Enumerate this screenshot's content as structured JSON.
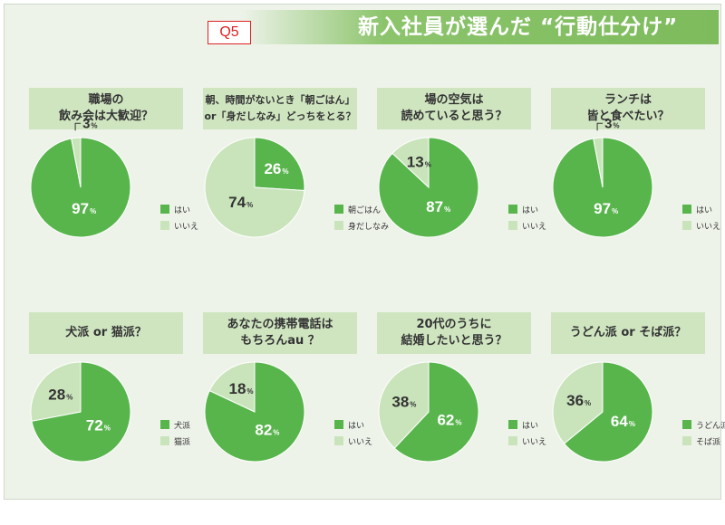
{
  "header": {
    "badge": "Q5",
    "title": "新入社員が選んだ “行動仕分け”"
  },
  "colors": {
    "main": "#58b54c",
    "light": "#c9e4bb",
    "band": "#8cc46c",
    "question_bg": "#cfe5c0"
  },
  "chart_data": [
    {
      "type": "pie",
      "title": "職場の\n飲み会は大歓迎？",
      "slices": [
        {
          "label": "はい",
          "value": 97
        },
        {
          "label": "いいえ",
          "value": 3
        }
      ]
    },
    {
      "type": "pie",
      "title": "朝、時間がないとき「朝ごはん」\nor「身だしなみ」どっちをとる？",
      "slices": [
        {
          "label": "朝ごはん",
          "value": 26
        },
        {
          "label": "身だしなみ",
          "value": 74
        }
      ]
    },
    {
      "type": "pie",
      "title": "場の空気は\n読めていると思う？",
      "slices": [
        {
          "label": "はい",
          "value": 87
        },
        {
          "label": "いいえ",
          "value": 13
        }
      ]
    },
    {
      "type": "pie",
      "title": "ランチは\n皆と食べたい？",
      "slices": [
        {
          "label": "はい",
          "value": 97
        },
        {
          "label": "いいえ",
          "value": 3
        }
      ]
    },
    {
      "type": "pie",
      "title": "犬派 or 猫派？",
      "slices": [
        {
          "label": "犬派",
          "value": 72
        },
        {
          "label": "猫派",
          "value": 28
        }
      ]
    },
    {
      "type": "pie",
      "title": "あなたの携帯電話は\nもちろんau ？",
      "slices": [
        {
          "label": "はい",
          "value": 82
        },
        {
          "label": "いいえ",
          "value": 18
        }
      ]
    },
    {
      "type": "pie",
      "title": "20代のうちに\n結婚したいと思う？",
      "slices": [
        {
          "label": "はい",
          "value": 62
        },
        {
          "label": "いいえ",
          "value": 38
        }
      ]
    },
    {
      "type": "pie",
      "title": "うどん派 or そば派？",
      "slices": [
        {
          "label": "うどん派",
          "value": 64
        },
        {
          "label": "そば派",
          "value": 36
        }
      ]
    }
  ]
}
